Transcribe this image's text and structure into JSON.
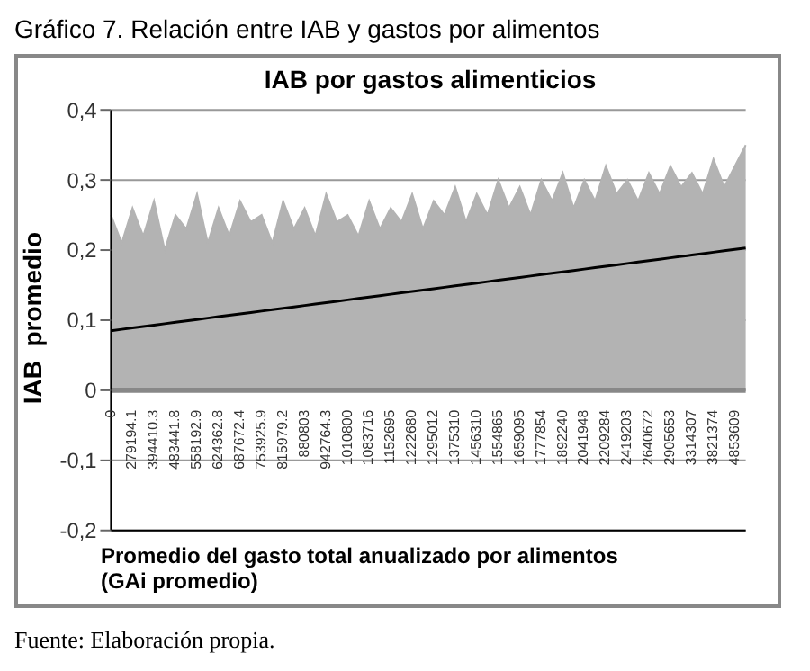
{
  "chart_data": {
    "type": "area",
    "title": "Gráfico 7. Relación entre IAB y gastos por alimentos",
    "subtitle": "IAB por gastos alimenticios",
    "xlabel": "Promedio del gasto total anualizado por alimentos\n(GAi promedio)",
    "ylabel": "IAB  promedio",
    "annotations": [
      "Fuente: Elaboración propia."
    ],
    "categories": [
      "0",
      null,
      "279194.1",
      null,
      "394410.3",
      null,
      "483441.8",
      null,
      "558192.9",
      null,
      "624362.8",
      null,
      "687672.4",
      null,
      "753925.9",
      null,
      "815979.2",
      null,
      "880803",
      null,
      "942764.3",
      null,
      "1010800",
      null,
      "1083716",
      null,
      "1152695",
      null,
      "1222680",
      null,
      "1295012",
      null,
      "1375310",
      null,
      "1456310",
      null,
      "1554865",
      null,
      "1659095",
      null,
      "1777854",
      null,
      "1892240",
      null,
      "2041948",
      null,
      "2209284",
      null,
      "2419203",
      null,
      "2640672",
      null,
      "2905653",
      null,
      "3314307",
      null,
      "3821374",
      null,
      "4853609",
      null
    ],
    "series": [
      {
        "color": "#b3b3b3",
        "values": [
          0.25,
          0.21,
          0.26,
          0.22,
          0.27,
          0.2,
          0.25,
          0.23,
          0.28,
          0.21,
          0.26,
          0.22,
          0.27,
          0.24,
          0.25,
          0.21,
          0.27,
          0.23,
          0.26,
          0.22,
          0.28,
          0.24,
          0.25,
          0.22,
          0.27,
          0.23,
          0.26,
          0.24,
          0.28,
          0.23,
          0.27,
          0.25,
          0.29,
          0.24,
          0.28,
          0.25,
          0.3,
          0.26,
          0.29,
          0.25,
          0.3,
          0.27,
          0.31,
          0.26,
          0.3,
          0.27,
          0.32,
          0.28,
          0.3,
          0.27,
          0.31,
          0.28,
          0.32,
          0.29,
          0.31,
          0.28,
          0.33,
          0.29,
          0.32,
          0.35
        ]
      },
      {
        "type": "line",
        "color": "#000000",
        "values": [
          0.085,
          0.087,
          0.089,
          0.091,
          0.093,
          0.095,
          0.097,
          0.099,
          0.101,
          0.103,
          0.105,
          0.107,
          0.109,
          0.111,
          0.113,
          0.115,
          0.117,
          0.119,
          0.121,
          0.123,
          0.125,
          0.127,
          0.129,
          0.131,
          0.133,
          0.135,
          0.137,
          0.139,
          0.141,
          0.143,
          0.145,
          0.147,
          0.149,
          0.151,
          0.153,
          0.155,
          0.157,
          0.159,
          0.161,
          0.163,
          0.165,
          0.167,
          0.169,
          0.171,
          0.173,
          0.175,
          0.177,
          0.179,
          0.181,
          0.183,
          0.185,
          0.187,
          0.189,
          0.191,
          0.193,
          0.195,
          0.197,
          0.199,
          0.201,
          0.203
        ]
      }
    ],
    "ylim": [
      -0.2,
      0.4
    ],
    "yticks": [
      {
        "value": -0.2,
        "label": "-0,2"
      },
      {
        "value": -0.1,
        "label": "-0,1"
      },
      {
        "value": 0,
        "label": "0"
      },
      {
        "value": 0.1,
        "label": "0,1"
      },
      {
        "value": 0.2,
        "label": "0,2"
      },
      {
        "value": 0.3,
        "label": "0,3"
      },
      {
        "value": 0.4,
        "label": "0,4"
      }
    ],
    "grid": "y"
  }
}
